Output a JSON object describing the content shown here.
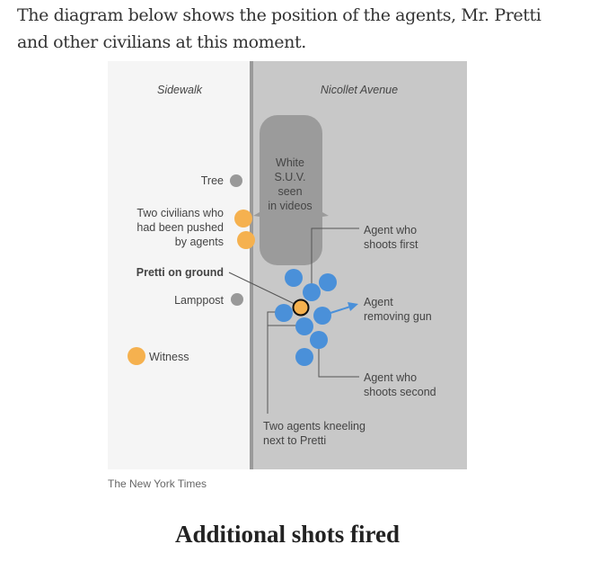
{
  "intro": "The diagram below shows the position of the agents, Mr. Pretti and other civilians at this moment.",
  "diagram": {
    "zones": {
      "left": "Sidewalk",
      "right": "Nicollet Avenue"
    },
    "suv": [
      "White",
      "S.U.V.",
      "seen",
      "in videos"
    ],
    "labels": {
      "tree": "Tree",
      "civilians": [
        "Two civilians who",
        "had been pushed",
        "by agents"
      ],
      "pretti": "Pretti on ground",
      "lamppost": "Lamppost",
      "witness": "Witness",
      "shoots_first": [
        "Agent who",
        "shoots first"
      ],
      "removing_gun": [
        "Agent",
        "removing gun"
      ],
      "shoots_second": [
        "Agent who",
        "shoots second"
      ],
      "kneeling": [
        "Two agents kneeling",
        "next to Pretti"
      ]
    },
    "colors": {
      "agent": "#4a90d9",
      "civilian": "#f5b14f",
      "object": "#999999",
      "sidewalk": "#f5f5f5",
      "road": "#c8c8c8"
    }
  },
  "credit": "The New York Times",
  "next_heading": "Additional shots fired"
}
